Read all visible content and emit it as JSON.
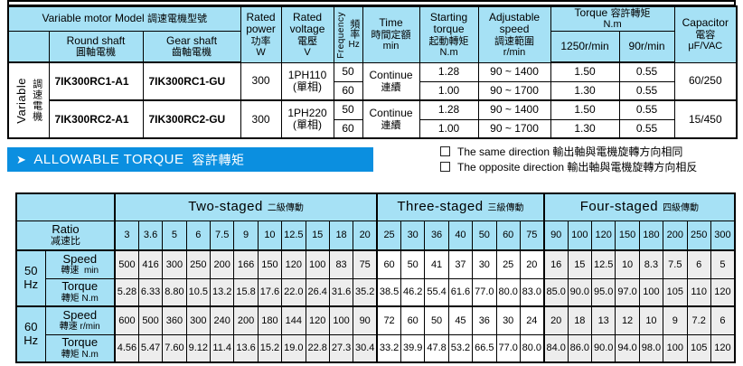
{
  "colors": {
    "header_bg": "#a6e1f5",
    "banner_bg": "#0b8fe0",
    "cell_gray": "#ededed",
    "border": "#000000"
  },
  "spec_table": {
    "title": {
      "en": "Variable motor Model",
      "zh": "調速電機型號"
    },
    "side_label": {
      "en": "Variable",
      "zh": "調速電機"
    },
    "columns": {
      "round_shaft": {
        "en": "Round shaft",
        "zh": "圓軸電機"
      },
      "gear_shaft": {
        "en": "Gear shaft",
        "zh": "齒軸電機"
      },
      "rated_power": {
        "en": "Rated power",
        "zh": "功率",
        "unit": "W"
      },
      "rated_voltage": {
        "en": "Rated voltage",
        "zh": "電壓",
        "unit": "V"
      },
      "frequency": {
        "en": "Frequency",
        "zh": "頻率",
        "unit": "Hz"
      },
      "time": {
        "en": "Time",
        "zh": "時間定額",
        "unit": "min"
      },
      "starting_torque": {
        "en": "Starting torque",
        "zh": "起動轉矩",
        "unit": "N.m"
      },
      "adjustable_speed": {
        "en": "Adjustable speed",
        "zh": "調速範圍",
        "unit": "r/min"
      },
      "torque": {
        "en": "Torque",
        "zh": "容許轉矩",
        "unit": "N.m",
        "sub": [
          "1250r/min",
          "90r/min"
        ]
      },
      "capacitor": {
        "en": "Capacitor",
        "zh": "電容",
        "unit": "μF/VAC"
      }
    },
    "models": [
      {
        "round_shaft": "7IK300RC1-A1",
        "gear_shaft": "7IK300RC1-GU",
        "rated_power": "300",
        "rated_voltage": "1PH110",
        "rated_voltage_note": "(單相)",
        "time": {
          "en": "Continue",
          "zh": "連續"
        },
        "capacitor": "60/250",
        "freq_rows": [
          {
            "hz": "50",
            "starting_torque": "1.28",
            "adjustable_speed": "90 ~ 1400",
            "torque_1250": "1.50",
            "torque_90": "0.55"
          },
          {
            "hz": "60",
            "starting_torque": "1.00",
            "adjustable_speed": "90 ~ 1700",
            "torque_1250": "1.30",
            "torque_90": "0.55"
          }
        ]
      },
      {
        "round_shaft": "7IK300RC2-A1",
        "gear_shaft": "7IK300RC2-GU",
        "rated_power": "300",
        "rated_voltage": "1PH220",
        "rated_voltage_note": "(單相)",
        "time": {
          "en": "Continue",
          "zh": "連續"
        },
        "capacitor": "15/450",
        "freq_rows": [
          {
            "hz": "50",
            "starting_torque": "1.28",
            "adjustable_speed": "90 ~ 1400",
            "torque_1250": "1.50",
            "torque_90": "0.55"
          },
          {
            "hz": "60",
            "starting_torque": "1.00",
            "adjustable_speed": "90 ~ 1700",
            "torque_1250": "1.30",
            "torque_90": "0.55"
          }
        ]
      }
    ]
  },
  "banner": {
    "arrow": "➤",
    "en": "ALLOWABLE TORQUE",
    "zh": "容許轉矩"
  },
  "direction_legend": [
    {
      "en": "The same direction",
      "zh": "輸出軸與電機旋轉方向相同"
    },
    {
      "en": "The opposite direction",
      "zh": "輸出軸與電機旋轉方向相反"
    }
  ],
  "torque_table": {
    "ratio": {
      "en": "Ratio",
      "zh": "减速比"
    },
    "groups": [
      {
        "en": "Two-staged",
        "zh": "二級傳動",
        "span": 11
      },
      {
        "en": "Three-staged",
        "zh": "三級傳動",
        "span": 7
      },
      {
        "en": "Four-staged",
        "zh": "四級傳動",
        "span": 8
      }
    ],
    "ratios": [
      "3",
      "3.6",
      "5",
      "6",
      "7.5",
      "9",
      "10",
      "12.5",
      "15",
      "18",
      "20",
      "25",
      "30",
      "36",
      "40",
      "50",
      "60",
      "75",
      "90",
      "100",
      "120",
      "150",
      "180",
      "200",
      "250",
      "300"
    ],
    "freq_blocks": [
      {
        "hz": "50",
        "hz_unit": "Hz",
        "speed_label": {
          "en": "Speed",
          "zh": "轉速",
          "unit": "min"
        },
        "torque_label": {
          "en": "Torque",
          "zh": "轉矩",
          "unit": "N.m"
        },
        "speed": [
          "500",
          "416",
          "300",
          "250",
          "200",
          "166",
          "150",
          "120",
          "100",
          "83",
          "75",
          "60",
          "50",
          "41",
          "37",
          "30",
          "25",
          "20",
          "16",
          "15",
          "12.5",
          "10",
          "8.3",
          "7.5",
          "6",
          "5"
        ],
        "torque": [
          "5.28",
          "6.33",
          "8.80",
          "10.5",
          "13.2",
          "15.8",
          "17.6",
          "22.0",
          "26.4",
          "31.6",
          "35.2",
          "38.5",
          "46.2",
          "55.4",
          "61.6",
          "77.0",
          "80.0",
          "83.0",
          "85.0",
          "90.0",
          "95.0",
          "97.0",
          "100",
          "105",
          "110",
          "120"
        ]
      },
      {
        "hz": "60",
        "hz_unit": "Hz",
        "speed_label": {
          "en": "Speed",
          "zh": "轉速",
          "unit": "r/min"
        },
        "torque_label": {
          "en": "Torque",
          "zh": "轉矩",
          "unit": "N.m"
        },
        "speed": [
          "600",
          "500",
          "360",
          "300",
          "240",
          "200",
          "180",
          "144",
          "120",
          "100",
          "90",
          "72",
          "60",
          "50",
          "45",
          "36",
          "30",
          "24",
          "20",
          "18",
          "13",
          "12",
          "10",
          "9",
          "7.2",
          "6"
        ],
        "torque": [
          "4.56",
          "5.47",
          "7.60",
          "9.12",
          "11.4",
          "13.6",
          "15.2",
          "19.0",
          "22.8",
          "27.3",
          "30.4",
          "33.2",
          "39.9",
          "47.8",
          "53.2",
          "66.5",
          "77.0",
          "80.0",
          "84.0",
          "86.0",
          "90.0",
          "94.0",
          "98.0",
          "100",
          "105",
          "120"
        ]
      }
    ]
  }
}
